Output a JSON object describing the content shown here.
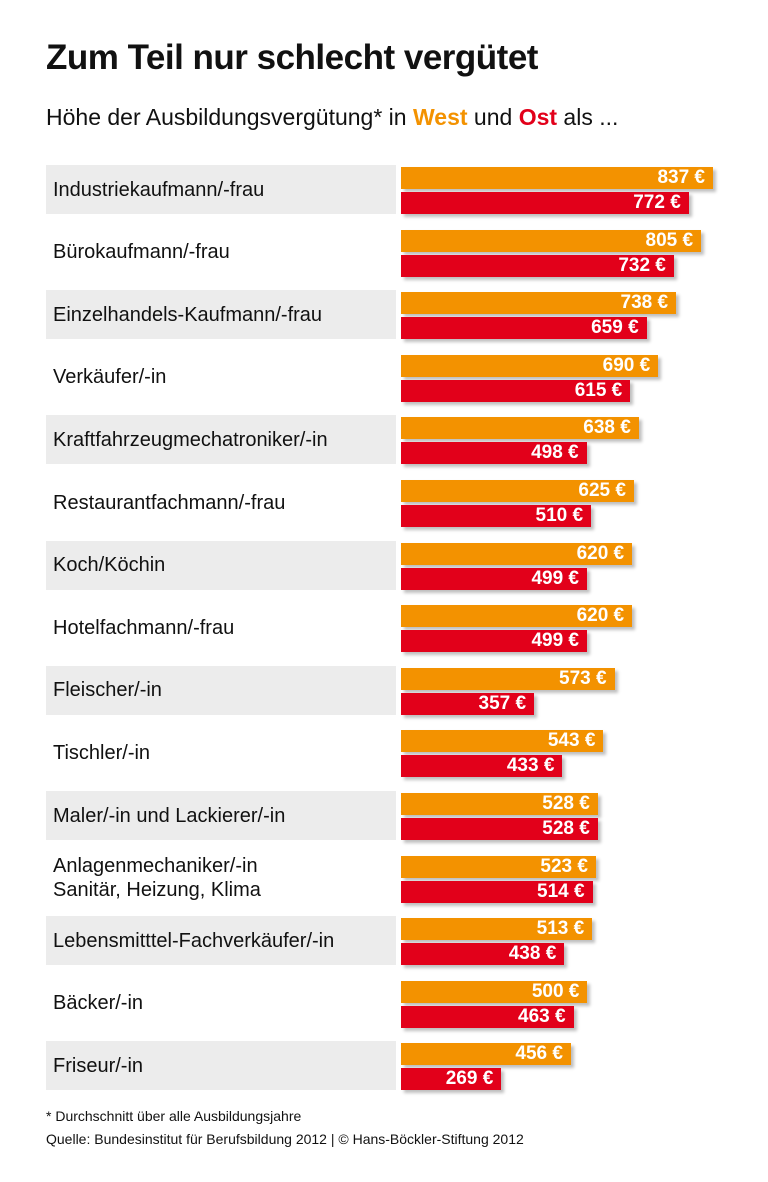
{
  "title": "Zum Teil nur schlecht vergütet",
  "subtitle": {
    "prefix": "Höhe der Ausbildungsvergütung* in ",
    "west": "West",
    "mid": " und ",
    "ost": "Ost",
    "suffix": " als ..."
  },
  "footnote": "* Durchschnitt über alle Ausbildungsjahre",
  "source": "Quelle: Bundesinstitut für Berufsbildung 2012 | © Hans-Böckler-Stiftung 2012",
  "colors": {
    "west": "#f39200",
    "ost": "#e2001a",
    "label_bg": "#ececec"
  },
  "chart_data": {
    "type": "bar",
    "orientation": "horizontal",
    "unit": "€",
    "categories": [
      "Industriekaufmann/-frau",
      "Bürokaufmann/-frau",
      "Einzelhandels-Kaufmann/-frau",
      "Verkäufer/-in",
      "Kraftfahrzeugmechatroniker/-in",
      "Restaurantfachmann/-frau",
      "Koch/Köchin",
      "Hotelfachmann/-frau",
      "Fleischer/-in",
      "Tischler/-in",
      "Maler/-in und Lackierer/-in",
      "Anlagenmechaniker/-in\nSanitär, Heizung, Klima",
      "Lebensmitttel-Fachverkäufer/-in",
      "Bäcker/-in",
      "Friseur/-in"
    ],
    "series": [
      {
        "name": "West",
        "color": "#f39200",
        "values": [
          837,
          805,
          738,
          690,
          638,
          625,
          620,
          620,
          573,
          543,
          528,
          523,
          513,
          500,
          456
        ]
      },
      {
        "name": "Ost",
        "color": "#e2001a",
        "values": [
          772,
          732,
          659,
          615,
          498,
          510,
          499,
          499,
          357,
          433,
          528,
          514,
          438,
          463,
          269
        ]
      }
    ],
    "data_labels": {
      "West": [
        "837 €",
        "805 €",
        "738 €",
        "690 €",
        "638 €",
        "625 €",
        "620 €",
        "620 €",
        "573 €",
        "543 €",
        "528 €",
        "523 €",
        "513 €",
        "500 €",
        "456 €"
      ],
      "Ost": [
        "772 €",
        "732 €",
        "659 €",
        "615 €",
        "498 €",
        "510 €",
        "499 €",
        "499 €",
        "357 €",
        "433 €",
        "528 €",
        "514 €",
        "438 €",
        "463 €",
        "269 €"
      ]
    },
    "grid": false
  }
}
